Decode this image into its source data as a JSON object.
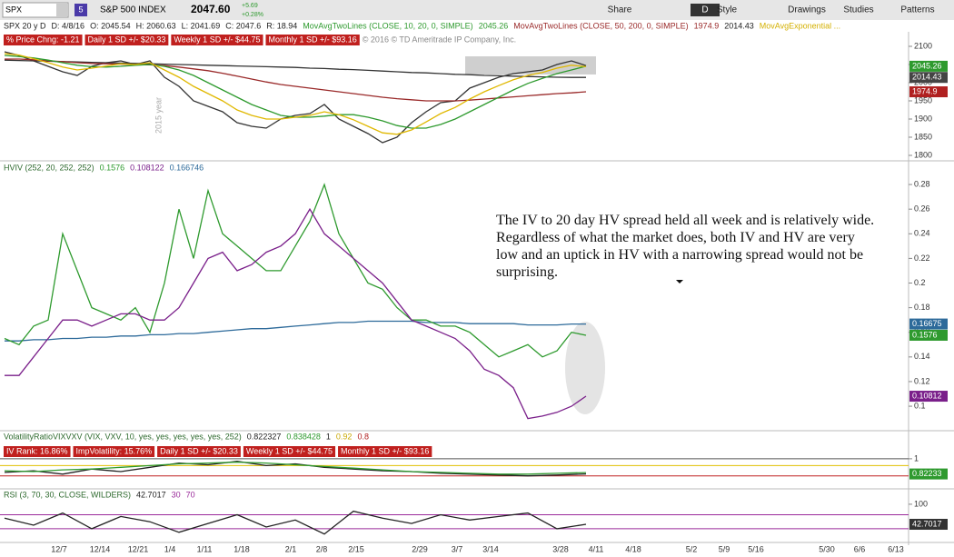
{
  "toolbar": {
    "symbol": "SPX",
    "badge": "5",
    "name": "S&P 500 INDEX",
    "last": "2047.60",
    "change": "+5.69",
    "change_pct": "+0.28%",
    "buttons": [
      "Share",
      "Style",
      "D",
      "Drawings",
      "Studies",
      "Patterns"
    ]
  },
  "header": {
    "items": [
      {
        "text": "SPX 20 y D",
        "color": "#222"
      },
      {
        "text": "D: 4/8/16",
        "color": "#222"
      },
      {
        "text": "O: 2045.54",
        "color": "#222"
      },
      {
        "text": "H: 2060.63",
        "color": "#222"
      },
      {
        "text": "L: 2041.69",
        "color": "#222"
      },
      {
        "text": "C: 2047.6",
        "color": "#222"
      },
      {
        "text": "R: 18.94",
        "color": "#222"
      },
      {
        "text": "MovAvgTwoLines (CLOSE, 10, 20, 0, SIMPLE)",
        "color": "#2e9a2e"
      },
      {
        "text": "2045.26",
        "color": "#2e9a2e"
      },
      {
        "text": "MovAvgTwoLines (CLOSE, 50, 200, 0, SIMPLE)",
        "color": "#9a2a2a"
      },
      {
        "text": "1974.9",
        "color": "#9a2a2a"
      },
      {
        "text": "2014.43",
        "color": "#222"
      },
      {
        "text": "MovAvgExponential ...",
        "color": "#d4b000"
      }
    ],
    "boxes": [
      "% Price Chng: -1.21",
      "Daily 1 SD +/- $20.33",
      "Weekly 1 SD +/- $44.75",
      "Monthly 1 SD +/- $93.16"
    ],
    "copyright": "© 2016 © TD Ameritrade IP Company, Inc.",
    "year_label": "2015 year"
  },
  "price": {
    "ylim": [
      1785,
      2140
    ],
    "yticks": [
      2100,
      2050,
      2000,
      1950,
      1900,
      1850,
      1800
    ],
    "series": [
      {
        "name": "Close",
        "color": "#333333",
        "values": [
          2085,
          2075,
          2060,
          2045,
          2030,
          2020,
          2045,
          2055,
          2060,
          2050,
          2060,
          2015,
          1990,
          1950,
          1935,
          1920,
          1890,
          1880,
          1875,
          1900,
          1910,
          1915,
          1940,
          1900,
          1880,
          1860,
          1835,
          1850,
          1890,
          1920,
          1945,
          1950,
          1985,
          2000,
          2015,
          2025,
          2030,
          2035,
          2050,
          2060,
          2047
        ]
      },
      {
        "name": "MA200",
        "color": "#333333",
        "values": [
          2062,
          2061,
          2060,
          2059,
          2058,
          2057,
          2056,
          2055,
          2054,
          2053,
          2052,
          2051,
          2050,
          2049,
          2048,
          2047,
          2046,
          2045,
          2044,
          2043,
          2042,
          2040,
          2039,
          2037,
          2036,
          2034,
          2032,
          2030,
          2028,
          2027,
          2025,
          2023,
          2022,
          2020,
          2019,
          2018,
          2017,
          2016,
          2015,
          2014.5,
          2014.43
        ]
      },
      {
        "name": "MA50",
        "color": "#9a2a2a",
        "values": [
          2065,
          2065,
          2063,
          2060,
          2058,
          2055,
          2053,
          2052,
          2051,
          2050,
          2049,
          2047,
          2043,
          2038,
          2033,
          2026,
          2018,
          2010,
          2002,
          1995,
          1990,
          1985,
          1980,
          1975,
          1970,
          1965,
          1960,
          1956,
          1953,
          1950,
          1950,
          1950,
          1952,
          1955,
          1958,
          1961,
          1964,
          1967,
          1970,
          1972,
          1974.9
        ]
      },
      {
        "name": "MA20",
        "color": "#2e9a2e",
        "values": [
          2075,
          2072,
          2068,
          2062,
          2055,
          2048,
          2044,
          2043,
          2045,
          2048,
          2050,
          2045,
          2035,
          2020,
          2000,
          1980,
          1960,
          1940,
          1925,
          1910,
          1905,
          1905,
          1908,
          1912,
          1912,
          1905,
          1895,
          1882,
          1875,
          1875,
          1885,
          1900,
          1920,
          1940,
          1960,
          1980,
          1998,
          2012,
          2025,
          2035,
          2045.26
        ]
      },
      {
        "name": "EMA",
        "color": "#e0b800",
        "values": [
          2080,
          2076,
          2066,
          2055,
          2043,
          2035,
          2040,
          2046,
          2052,
          2050,
          2055,
          2035,
          2015,
          1990,
          1970,
          1950,
          1925,
          1910,
          1900,
          1900,
          1905,
          1910,
          1920,
          1912,
          1898,
          1880,
          1862,
          1858,
          1870,
          1892,
          1915,
          1932,
          1955,
          1975,
          1992,
          2008,
          2020,
          2028,
          2040,
          2048,
          2044
        ]
      }
    ],
    "markers": [
      {
        "value": 2045.26,
        "color": "#2e9a2e"
      },
      {
        "value": 2014.43,
        "color": "#444444"
      },
      {
        "value": 1974.9,
        "color": "#b02020"
      }
    ]
  },
  "hviv": {
    "label": "HVIV (252, 20, 252, 252)",
    "readouts": [
      {
        "text": "0.1576",
        "color": "#2e9a2e"
      },
      {
        "text": "0.108122",
        "color": "#7a1f8a"
      },
      {
        "text": "0.166746",
        "color": "#2d6a9a"
      }
    ],
    "ylim": [
      0.0816,
      0.2948
    ],
    "yticks": [
      0.28,
      0.26,
      0.24,
      0.22,
      0.2,
      0.18,
      0.16,
      0.14,
      0.12,
      0.1
    ],
    "series": [
      {
        "name": "IVMean",
        "color": "#2d6a9a",
        "values": [
          0.153,
          0.153,
          0.154,
          0.154,
          0.155,
          0.155,
          0.156,
          0.156,
          0.157,
          0.157,
          0.158,
          0.158,
          0.159,
          0.159,
          0.16,
          0.161,
          0.162,
          0.163,
          0.163,
          0.164,
          0.165,
          0.166,
          0.167,
          0.168,
          0.168,
          0.169,
          0.169,
          0.169,
          0.169,
          0.168,
          0.168,
          0.168,
          0.167,
          0.167,
          0.167,
          0.167,
          0.166,
          0.166,
          0.166,
          0.1667,
          0.166746
        ]
      },
      {
        "name": "IV",
        "color": "#2e9a2e",
        "values": [
          0.155,
          0.15,
          0.165,
          0.17,
          0.24,
          0.21,
          0.18,
          0.175,
          0.17,
          0.18,
          0.16,
          0.2,
          0.26,
          0.22,
          0.275,
          0.24,
          0.23,
          0.22,
          0.21,
          0.21,
          0.23,
          0.25,
          0.28,
          0.24,
          0.22,
          0.2,
          0.195,
          0.18,
          0.17,
          0.17,
          0.165,
          0.165,
          0.16,
          0.15,
          0.14,
          0.145,
          0.15,
          0.14,
          0.145,
          0.16,
          0.1576
        ]
      },
      {
        "name": "HV",
        "color": "#7a1f8a",
        "values": [
          0.125,
          0.125,
          0.14,
          0.155,
          0.17,
          0.17,
          0.165,
          0.17,
          0.175,
          0.175,
          0.17,
          0.17,
          0.18,
          0.2,
          0.22,
          0.225,
          0.21,
          0.215,
          0.225,
          0.23,
          0.24,
          0.26,
          0.24,
          0.23,
          0.22,
          0.21,
          0.2,
          0.185,
          0.17,
          0.165,
          0.16,
          0.155,
          0.145,
          0.13,
          0.125,
          0.115,
          0.09,
          0.092,
          0.095,
          0.1,
          0.108122
        ]
      }
    ],
    "markers": [
      {
        "value": 0.16675,
        "color": "#2d6a9a"
      },
      {
        "value": 0.1576,
        "color": "#2e9a2e"
      },
      {
        "value": 0.10812,
        "color": "#7a1f8a"
      }
    ],
    "annotation": "The IV to 20 day HV spread held all week and is relatively wide.  Regardless of what the market does, both IV and HV are very low and an uptick in HV with a narrowing spread would not be surprising."
  },
  "vol": {
    "label": "VolatilityRatioVIXVXV (VIX, VXV, 10, yes, yes, yes, yes, yes, 252)",
    "readouts": [
      {
        "text": "0.822327",
        "color": "#222"
      },
      {
        "text": "0.838428",
        "color": "#2e9a2e"
      },
      {
        "text": "1",
        "color": "#222"
      },
      {
        "text": "0.92",
        "color": "#c9a800"
      },
      {
        "text": "0.8",
        "color": "#b02020"
      }
    ],
    "boxes": [
      "IV Rank: 16.86%",
      "ImpVolatility: 15.76%",
      "Daily 1 SD +/- $20.33",
      "Weekly 1 SD +/- $44.75",
      "Monthly 1 SD +/- $93.16"
    ],
    "ylim": [
      0.68,
      1.19
    ],
    "yticks": [
      1
    ],
    "levels": [
      {
        "value": 1,
        "color": "#555555"
      },
      {
        "value": 0.92,
        "color": "#e0c000"
      },
      {
        "value": 0.8,
        "color": "#c02020"
      }
    ],
    "series": [
      {
        "name": "Ratio",
        "color": "#222222",
        "values": [
          0.84,
          0.86,
          0.82,
          0.88,
          0.85,
          0.9,
          0.95,
          0.93,
          0.97,
          0.92,
          0.94,
          0.9,
          0.88,
          0.86,
          0.85,
          0.83,
          0.82,
          0.81,
          0.8,
          0.81,
          0.822327
        ]
      },
      {
        "name": "Avg",
        "color": "#2e9a2e",
        "values": [
          0.86,
          0.85,
          0.87,
          0.88,
          0.9,
          0.92,
          0.94,
          0.95,
          0.96,
          0.95,
          0.93,
          0.91,
          0.89,
          0.87,
          0.85,
          0.84,
          0.83,
          0.82,
          0.82,
          0.83,
          0.838428
        ]
      }
    ],
    "markers": [
      {
        "value": 0.82233,
        "color": "#2e9a2e"
      }
    ]
  },
  "rsi": {
    "label": "RSI (3, 70, 30, CLOSE, WILDERS)",
    "readouts": [
      {
        "text": "42.7017",
        "color": "#222"
      },
      {
        "text": "30",
        "color": "#9a2a9a"
      },
      {
        "text": "70",
        "color": "#9a2a9a"
      }
    ],
    "ylim": [
      -4,
      118
    ],
    "yticks": [
      100
    ],
    "levels": [
      {
        "value": 70,
        "color": "#9a2a9a"
      },
      {
        "value": 30,
        "color": "#9a2a9a"
      }
    ],
    "series": [
      {
        "name": "RSI",
        "color": "#222222",
        "values": [
          60,
          40,
          75,
          30,
          65,
          50,
          20,
          45,
          70,
          35,
          55,
          15,
          80,
          60,
          45,
          70,
          55,
          65,
          75,
          30,
          42.7017
        ]
      }
    ],
    "markers": [
      {
        "value": 42.7017,
        "color": "#333333"
      }
    ]
  },
  "xaxis": {
    "labels": [
      "12/7",
      "12/14",
      "12/21",
      "1/4",
      "1/11",
      "1/18",
      "2/1",
      "2/8",
      "2/15",
      "2/29",
      "3/7",
      "3/14",
      "3/28",
      "4/11",
      "4/18",
      "5/2",
      "5/9",
      "5/16",
      "5/30",
      "6/6",
      "6/13"
    ]
  }
}
